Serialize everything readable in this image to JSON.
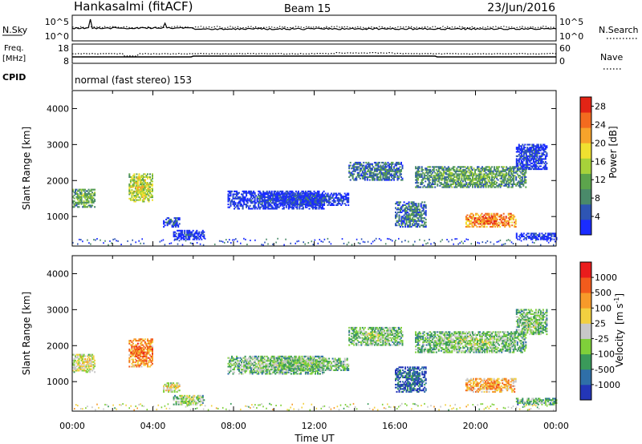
{
  "header": {
    "station": "Hankasalmi (fitACF)",
    "beam": "Beam 15",
    "date": "23/Jun/2016"
  },
  "summary": {
    "nsky_label": "N.Sky",
    "nsky_ticks": [
      "10^5",
      "10^0"
    ],
    "nsearch_label": "N.Search",
    "freq_label": "Freq.",
    "freq_unit": "[MHz]",
    "freq_ticks": [
      "18",
      "8"
    ],
    "nave_label": "Nave",
    "nave_ticks": [
      "60",
      "0"
    ],
    "cpid_label": "CPID",
    "cpid_text": "normal (fast stereo) 153"
  },
  "chart_data": [
    {
      "type": "heatmap",
      "title": "",
      "xlabel": "",
      "ylabel": "Slant Range [km]",
      "xlim": [
        0,
        24
      ],
      "ylim": [
        180,
        4500
      ],
      "yticks": [
        "1000",
        "2000",
        "3000",
        "4000"
      ],
      "colorbar": {
        "label": "Power [dB]",
        "ticks": [
          "4",
          "8",
          "12",
          "16",
          "20",
          "24",
          "28"
        ],
        "range": [
          0,
          30
        ],
        "colors": [
          "#1a2cff",
          "#2e55b4",
          "#4a8a6a",
          "#5ca44c",
          "#a7d23a",
          "#f0e030",
          "#f7a32b",
          "#f36b1f",
          "#e32415"
        ]
      },
      "regions": [
        {
          "t0": 0.0,
          "t1": 1.1,
          "r0": 1250,
          "r1": 1750,
          "level": 0.45
        },
        {
          "t0": 2.8,
          "t1": 4.0,
          "r0": 1400,
          "r1": 2200,
          "level": 0.6
        },
        {
          "t0": 4.5,
          "t1": 5.3,
          "r0": 700,
          "r1": 950,
          "level": 0.2
        },
        {
          "t0": 5.0,
          "t1": 6.5,
          "r0": 350,
          "r1": 600,
          "level": 0.1
        },
        {
          "t0": 7.7,
          "t1": 12.5,
          "r0": 1200,
          "r1": 1700,
          "level": 0.12
        },
        {
          "t0": 10.0,
          "t1": 13.7,
          "r0": 1300,
          "r1": 1650,
          "level": 0.15
        },
        {
          "t0": 13.7,
          "t1": 16.4,
          "r0": 2000,
          "r1": 2500,
          "level": 0.3
        },
        {
          "t0": 16.0,
          "t1": 17.5,
          "r0": 700,
          "r1": 1400,
          "level": 0.3
        },
        {
          "t0": 17.0,
          "t1": 22.5,
          "r0": 1800,
          "r1": 2400,
          "level": 0.4
        },
        {
          "t0": 19.5,
          "t1": 22.0,
          "r0": 700,
          "r1": 1100,
          "level": 0.85
        },
        {
          "t0": 22.0,
          "t1": 23.5,
          "r0": 2300,
          "r1": 3000,
          "level": 0.15
        },
        {
          "t0": 22.0,
          "t1": 24.0,
          "r0": 350,
          "r1": 550,
          "level": 0.1
        }
      ]
    },
    {
      "type": "heatmap",
      "title": "",
      "xlabel": "Time UT",
      "ylabel": "Slant Range [km]",
      "xlim": [
        0,
        24
      ],
      "xticks": [
        "00:00",
        "04:00",
        "08:00",
        "12:00",
        "16:00",
        "20:00",
        "00:00"
      ],
      "ylim": [
        180,
        4500
      ],
      "yticks": [
        "1000",
        "2000",
        "3000",
        "4000"
      ],
      "colorbar": {
        "label": "Velocity [m s-1]",
        "label_main": "Velocity",
        "label_unit": "[m s",
        "label_sup": "-1",
        "label_close": "]",
        "ticks": [
          "1000",
          "500",
          "100",
          "25",
          "-25",
          "-100",
          "-500",
          "-1000"
        ],
        "range": [
          -1000,
          1000
        ],
        "colors": [
          "#2336b8",
          "#2f6fa8",
          "#3a9a5a",
          "#7fd03a",
          "#c8c8c8",
          "#f2d040",
          "#f79a2a",
          "#f25b1c",
          "#ea1c1c"
        ]
      },
      "regions": [
        {
          "t0": 0.0,
          "t1": 1.1,
          "r0": 1250,
          "r1": 1750,
          "level": 0.6
        },
        {
          "t0": 2.8,
          "t1": 4.0,
          "r0": 1400,
          "r1": 2200,
          "level": 0.82
        },
        {
          "t0": 4.5,
          "t1": 5.3,
          "r0": 700,
          "r1": 950,
          "level": 0.6
        },
        {
          "t0": 5.0,
          "t1": 6.5,
          "r0": 350,
          "r1": 600,
          "level": 0.5
        },
        {
          "t0": 7.7,
          "t1": 12.5,
          "r0": 1200,
          "r1": 1700,
          "level": 0.45
        },
        {
          "t0": 10.0,
          "t1": 13.7,
          "r0": 1300,
          "r1": 1650,
          "level": 0.45
        },
        {
          "t0": 13.7,
          "t1": 16.4,
          "r0": 2000,
          "r1": 2500,
          "level": 0.45
        },
        {
          "t0": 16.0,
          "t1": 17.5,
          "r0": 700,
          "r1": 1400,
          "level": 0.2
        },
        {
          "t0": 17.0,
          "t1": 22.5,
          "r0": 1800,
          "r1": 2400,
          "level": 0.45
        },
        {
          "t0": 19.5,
          "t1": 22.0,
          "r0": 700,
          "r1": 1100,
          "level": 0.75
        },
        {
          "t0": 22.0,
          "t1": 23.5,
          "r0": 2300,
          "r1": 3000,
          "level": 0.45
        },
        {
          "t0": 22.0,
          "t1": 24.0,
          "r0": 350,
          "r1": 550,
          "level": 0.4
        }
      ]
    }
  ]
}
